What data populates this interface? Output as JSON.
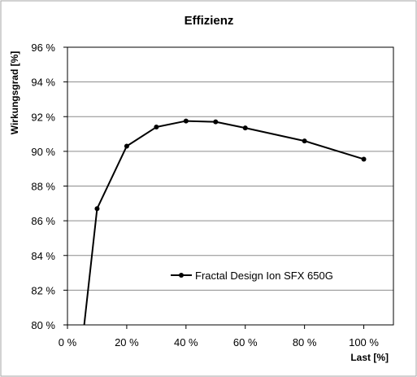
{
  "chart_data": {
    "type": "line",
    "title": "Effizienz",
    "xlabel": "Last [%]",
    "ylabel": "Wirkungsgrad [%]",
    "xlim": [
      0,
      110
    ],
    "ylim": [
      80,
      96
    ],
    "x_ticks": [
      0,
      20,
      40,
      60,
      80,
      100
    ],
    "y_ticks": [
      80,
      82,
      84,
      86,
      88,
      90,
      92,
      94,
      96
    ],
    "x_tick_labels": [
      "0 %",
      "20 %",
      "40 %",
      "60 %",
      "80 %",
      "100 %"
    ],
    "y_tick_labels": [
      "80 %",
      "82 %",
      "84 %",
      "86 %",
      "88 %",
      "90 %",
      "92 %",
      "94 %",
      "96 %"
    ],
    "grid": "horizontal",
    "legend_position": "bottom-center",
    "series": [
      {
        "name": "Fractal Design Ion SFX 650G",
        "color": "#000000",
        "x": [
          5,
          10,
          20,
          30,
          40,
          50,
          60,
          80,
          100
        ],
        "y": [
          79.0,
          86.7,
          90.3,
          91.4,
          91.75,
          91.7,
          91.35,
          90.6,
          89.55
        ],
        "markers": [
          false,
          true,
          true,
          true,
          true,
          true,
          true,
          true,
          true
        ]
      }
    ]
  }
}
